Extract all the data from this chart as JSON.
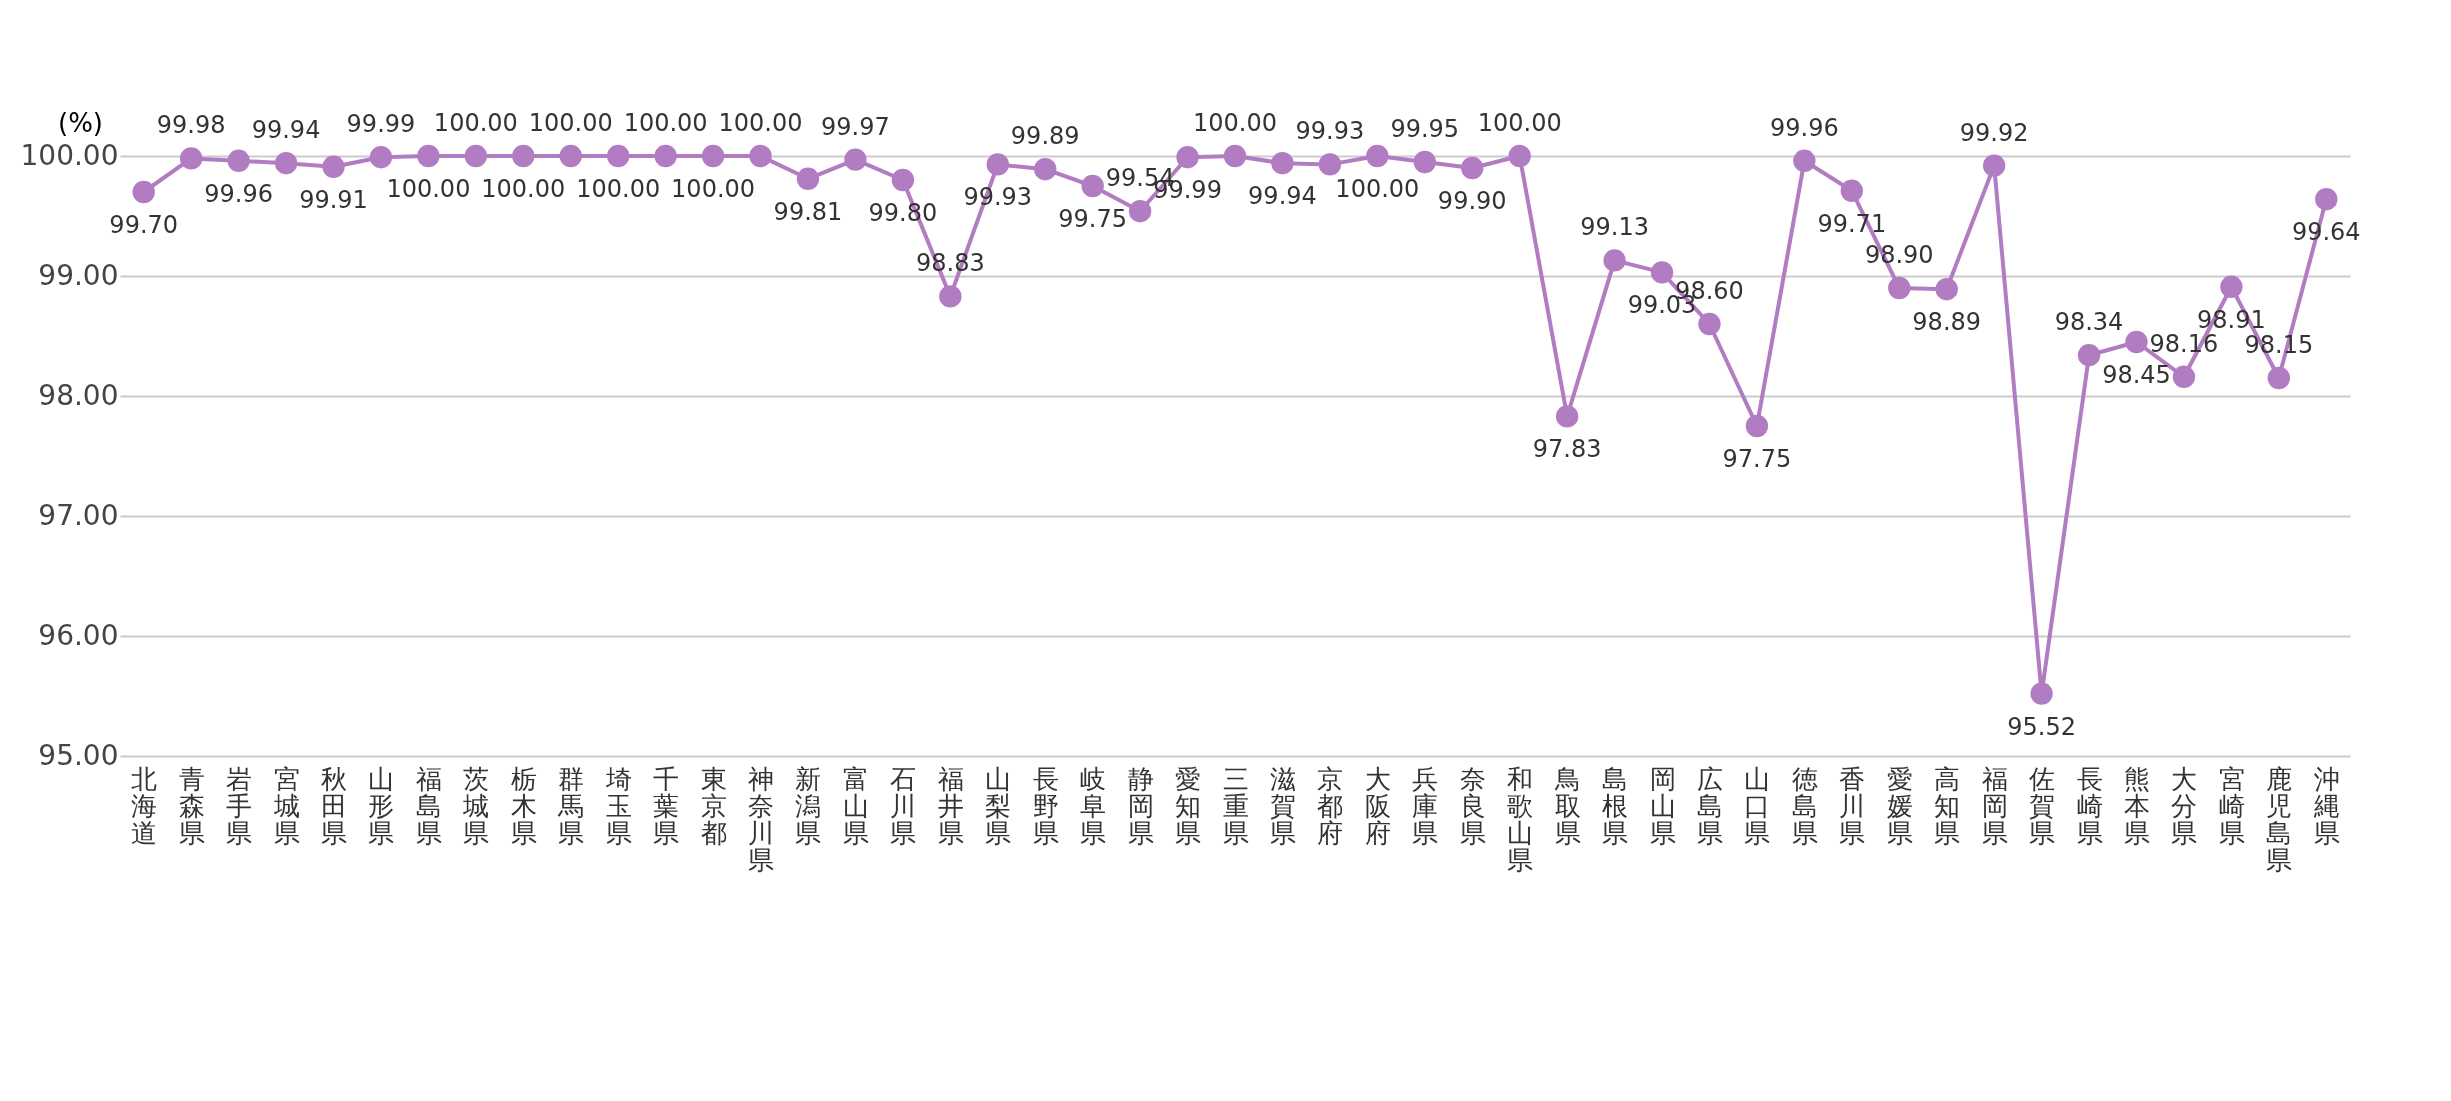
{
  "chart_data": {
    "type": "line",
    "ylabel": "(%)",
    "categories": [
      "北海道",
      "青森県",
      "岩手県",
      "宮城県",
      "秋田県",
      "山形県",
      "福島県",
      "茨城県",
      "栃木県",
      "群馬県",
      "埼玉県",
      "千葉県",
      "東京都",
      "神奈川県",
      "新潟県",
      "富山県",
      "石川県",
      "福井県",
      "山梨県",
      "長野県",
      "岐阜県",
      "静岡県",
      "愛知県",
      "三重県",
      "滋賀県",
      "京都府",
      "大阪府",
      "兵庫県",
      "奈良県",
      "和歌山県",
      "鳥取県",
      "島根県",
      "岡山県",
      "広島県",
      "山口県",
      "徳島県",
      "香川県",
      "愛媛県",
      "高知県",
      "福岡県",
      "佐賀県",
      "長崎県",
      "熊本県",
      "大分県",
      "宮崎県",
      "鹿児島県",
      "沖縄県"
    ],
    "series": [
      {
        "color": "#b27cc2",
        "values": [
          99.7,
          99.98,
          99.96,
          99.94,
          99.91,
          99.99,
          100.0,
          100.0,
          100.0,
          100.0,
          100.0,
          100.0,
          100.0,
          100.0,
          99.81,
          99.97,
          99.8,
          98.83,
          99.93,
          99.89,
          99.75,
          99.54,
          99.99,
          100.0,
          99.94,
          99.93,
          100.0,
          99.95,
          99.9,
          100.0,
          97.83,
          99.13,
          99.03,
          98.6,
          97.75,
          99.96,
          99.71,
          98.9,
          98.89,
          99.92,
          95.52,
          98.34,
          98.45,
          98.16,
          98.91,
          98.15,
          99.64
        ],
        "value_labels": [
          "99.70",
          "99.98",
          "99.96",
          "99.94",
          "99.91",
          "99.99",
          "100.00",
          "100.00",
          "100.00",
          "100.00",
          "100.00",
          "100.00",
          "100.00",
          "100.00",
          "99.81",
          "99.97",
          "99.80",
          "98.83",
          "99.93",
          "99.89",
          "99.75",
          "99.54",
          "99.99",
          "100.00",
          "99.94",
          "99.93",
          "100.00",
          "99.95",
          "99.90",
          "100.00",
          "97.83",
          "99.13",
          "99.03",
          "98.60",
          "97.75",
          "99.96",
          "99.71",
          "98.90",
          "98.89",
          "99.92",
          "95.52",
          "98.34",
          "98.45",
          "98.16",
          "98.91",
          "98.15",
          "99.64"
        ]
      }
    ],
    "ylim": [
      95,
      100
    ],
    "yticks": [
      {
        "value": 95,
        "label": "95.00"
      },
      {
        "value": 96,
        "label": "96.00"
      },
      {
        "value": 97,
        "label": "97.00"
      },
      {
        "value": 98,
        "label": "98.00"
      },
      {
        "value": 99,
        "label": "99.00"
      },
      {
        "value": 100,
        "label": "100.00"
      }
    ],
    "grid": "y",
    "marker": "circle",
    "line_style": "solid"
  }
}
